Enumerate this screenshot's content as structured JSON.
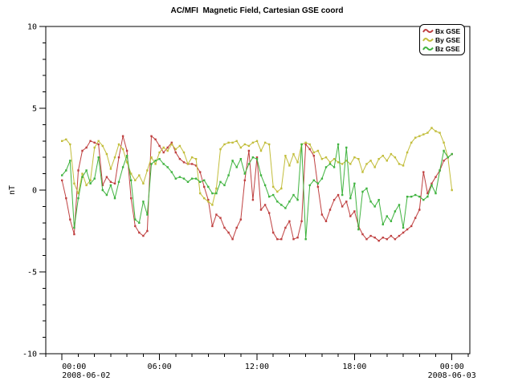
{
  "title": "AC/MFI  Magnetic Field, Cartesian GSE coord",
  "legend": {
    "items": [
      {
        "label": "Bx GSE",
        "color": "#bf4040"
      },
      {
        "label": "By GSE",
        "color": "#c2bd3a"
      },
      {
        "label": "Bz GSE",
        "color": "#3fb33f"
      }
    ]
  },
  "chart_data": {
    "type": "line",
    "title": "AC/MFI  Magnetic Field, Cartesian GSE coord",
    "xlabel": "",
    "ylabel": "nT",
    "ylim": [
      -10,
      10
    ],
    "y_major_ticks": [
      10,
      5,
      0,
      -5,
      -10
    ],
    "y_minor_step": 1,
    "xlim_hours": [
      -1,
      25.1
    ],
    "x_major_ticks": [
      {
        "hour": 0,
        "label": "00:00",
        "date": "2008-06-02"
      },
      {
        "hour": 6,
        "label": "06:00"
      },
      {
        "hour": 12,
        "label": "12:00"
      },
      {
        "hour": 18,
        "label": "18:00"
      },
      {
        "hour": 24,
        "label": "00:00",
        "date": "2008-06-03"
      }
    ],
    "x_minor_step_hours": 1,
    "x_start_hour": 0,
    "x_step_hours": 0.25,
    "grid": false,
    "legend_position": "top-right",
    "series": [
      {
        "name": "Bx GSE",
        "color": "#bf4040",
        "values": [
          0.6,
          -0.5,
          -1.8,
          -2.7,
          1.2,
          2.4,
          2.6,
          3.0,
          2.9,
          2.8,
          0.3,
          0.8,
          0.5,
          0.4,
          2.0,
          3.3,
          2.4,
          -0.5,
          -2.2,
          -2.6,
          -2.8,
          -2.5,
          3.3,
          3.1,
          2.7,
          2.3,
          2.6,
          2.9,
          2.3,
          1.9,
          1.7,
          1.6,
          1.6,
          1.5,
          1.1,
          0.2,
          -0.6,
          -2.2,
          -1.5,
          -1.7,
          -2.3,
          -2.6,
          -3.0,
          -2.3,
          -1.8,
          0.6,
          2.4,
          -0.6,
          2.0,
          -1.2,
          -0.9,
          -1.4,
          -2.6,
          -3.0,
          -3.0,
          -2.3,
          -1.9,
          -3.0,
          -2.9,
          -1.9,
          2.8,
          2.5,
          2.1,
          0.2,
          -1.5,
          -1.9,
          -1.2,
          -0.6,
          -0.3,
          -1.0,
          -0.7,
          -1.6,
          -1.3,
          -2.2,
          -2.7,
          -3.0,
          -2.8,
          -2.9,
          -3.1,
          -2.9,
          -3.0,
          -2.8,
          -3.0,
          -2.8,
          -2.6,
          -2.4,
          -2.2,
          -1.7,
          -1.2,
          1.1,
          -0.2,
          0.4,
          0.8,
          1.2,
          1.8,
          2.0,
          2.2
        ]
      },
      {
        "name": "By GSE",
        "color": "#c2bd3a",
        "values": [
          3.0,
          3.1,
          2.8,
          0.4,
          -0.2,
          1.0,
          0.3,
          0.6,
          2.6,
          3.0,
          2.7,
          2.2,
          1.3,
          2.0,
          2.8,
          2.5,
          1.7,
          1.0,
          0.6,
          0.9,
          0.4,
          1.2,
          2.0,
          1.6,
          2.3,
          2.6,
          2.4,
          2.8,
          2.5,
          2.7,
          2.3,
          1.6,
          2.0,
          1.9,
          -0.2,
          -0.5,
          -0.7,
          -0.9,
          0.1,
          2.5,
          2.8,
          2.9,
          2.9,
          3.0,
          2.6,
          2.8,
          2.7,
          2.9,
          3.0,
          2.4,
          2.9,
          2.8,
          0.2,
          -0.1,
          0.1,
          2.1,
          1.5,
          2.2,
          1.7,
          2.8,
          2.9,
          2.8,
          2.3,
          2.4,
          1.9,
          2.0,
          1.7,
          1.9,
          1.7,
          1.6,
          1.8,
          1.6,
          2.0,
          1.9,
          1.1,
          1.6,
          1.8,
          1.4,
          1.9,
          2.1,
          1.8,
          2.2,
          2.0,
          1.6,
          1.5,
          2.3,
          2.9,
          3.2,
          3.3,
          3.4,
          3.5,
          3.8,
          3.6,
          3.5,
          2.9,
          2.0,
          0.0
        ]
      },
      {
        "name": "Bz GSE",
        "color": "#3fb33f",
        "values": [
          0.9,
          1.2,
          1.8,
          -2.3,
          -0.5,
          0.8,
          1.2,
          0.4,
          0.7,
          2.0,
          0.0,
          -0.3,
          0.3,
          -0.5,
          0.5,
          1.4,
          2.1,
          0.6,
          -1.8,
          -2.0,
          -0.7,
          -1.5,
          1.6,
          1.8,
          1.9,
          1.6,
          1.4,
          1.1,
          0.7,
          0.8,
          0.7,
          0.5,
          0.7,
          0.7,
          0.5,
          0.6,
          0.2,
          -0.2,
          -0.2,
          0.5,
          0.3,
          0.9,
          1.8,
          1.4,
          1.9,
          1.0,
          1.6,
          2.0,
          1.9,
          0.9,
          0.3,
          -0.4,
          -0.3,
          -0.7,
          -0.9,
          -1.1,
          -0.7,
          -0.3,
          -0.6,
          2.8,
          -3.0,
          0.3,
          0.6,
          0.4,
          0.7,
          1.4,
          1.6,
          1.4,
          2.8,
          -0.3,
          2.6,
          -0.5,
          0.4,
          -2.4,
          -0.1,
          0.1,
          -0.7,
          -1.0,
          -0.6,
          -2.1,
          -1.6,
          -1.9,
          -1.3,
          -0.9,
          -2.3,
          -0.4,
          -0.4,
          -0.3,
          -0.4,
          -0.6,
          -0.4,
          0.3,
          -0.2,
          1.2,
          2.4,
          2.0,
          2.2
        ]
      }
    ]
  }
}
